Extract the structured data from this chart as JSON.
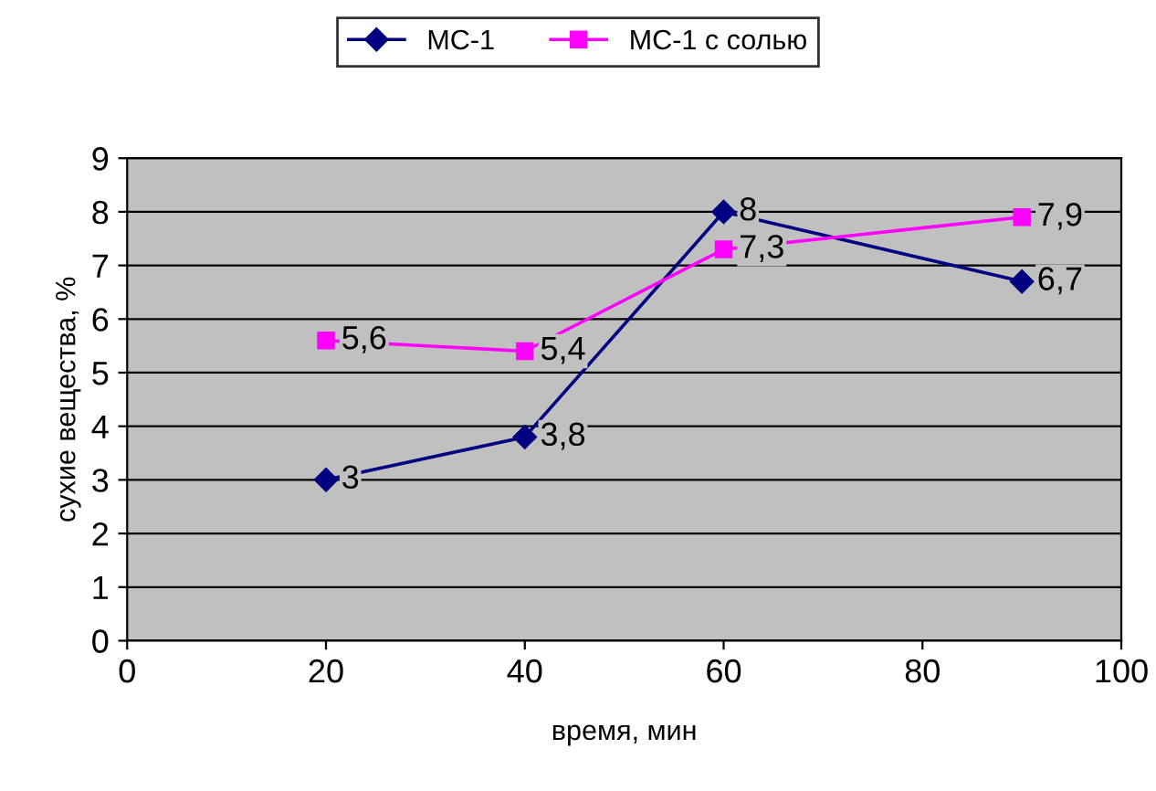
{
  "chart_data": {
    "type": "line",
    "xlabel": "время, мин",
    "ylabel": "сухие вещества, %",
    "xlim": [
      0,
      100
    ],
    "xticks": [
      0,
      20,
      40,
      60,
      80,
      100
    ],
    "ylim": [
      0,
      9
    ],
    "yticks": [
      0,
      1,
      2,
      3,
      4,
      5,
      6,
      7,
      8,
      9
    ],
    "grid": "y",
    "legend": "top",
    "series": [
      {
        "name": "МС-1",
        "color": "#000080",
        "marker": "diamond",
        "x": [
          20,
          40,
          60,
          90
        ],
        "values": [
          3,
          3.8,
          8,
          6.7
        ],
        "value_labels": [
          "3",
          "3,8",
          "8",
          "6,7"
        ]
      },
      {
        "name": "МС-1 с солью",
        "color": "#ff00ff",
        "marker": "square",
        "x": [
          20,
          40,
          60,
          90
        ],
        "values": [
          5.6,
          5.4,
          7.3,
          7.9
        ],
        "value_labels": [
          "5,6",
          "5,4",
          "7,3",
          "7,9"
        ]
      }
    ]
  }
}
